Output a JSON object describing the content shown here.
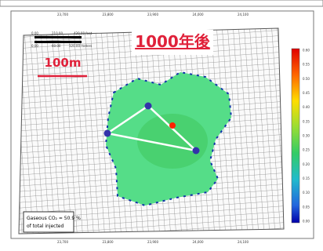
{
  "title": "1000年後",
  "scale_label": "100m",
  "annotation": {
    "line1": "Gaseous CO₂ = 50.9 %",
    "line2": "of total injected"
  },
  "header_scale": [
    "0.00",
    "210.00",
    "420.00 feet",
    "0.00",
    "60.00",
    "120.00 meters"
  ],
  "x_axis": [
    "23,700",
    "23,800",
    "23,900",
    "24,000",
    "24,100"
  ],
  "colorbar": {
    "ticks": [
      "0.60",
      "0.55",
      "0.50",
      "0.45",
      "0.40",
      "0.35",
      "0.30",
      "0.25",
      "0.20",
      "0.15",
      "0.10",
      "0.05",
      "0.00"
    ]
  }
}
